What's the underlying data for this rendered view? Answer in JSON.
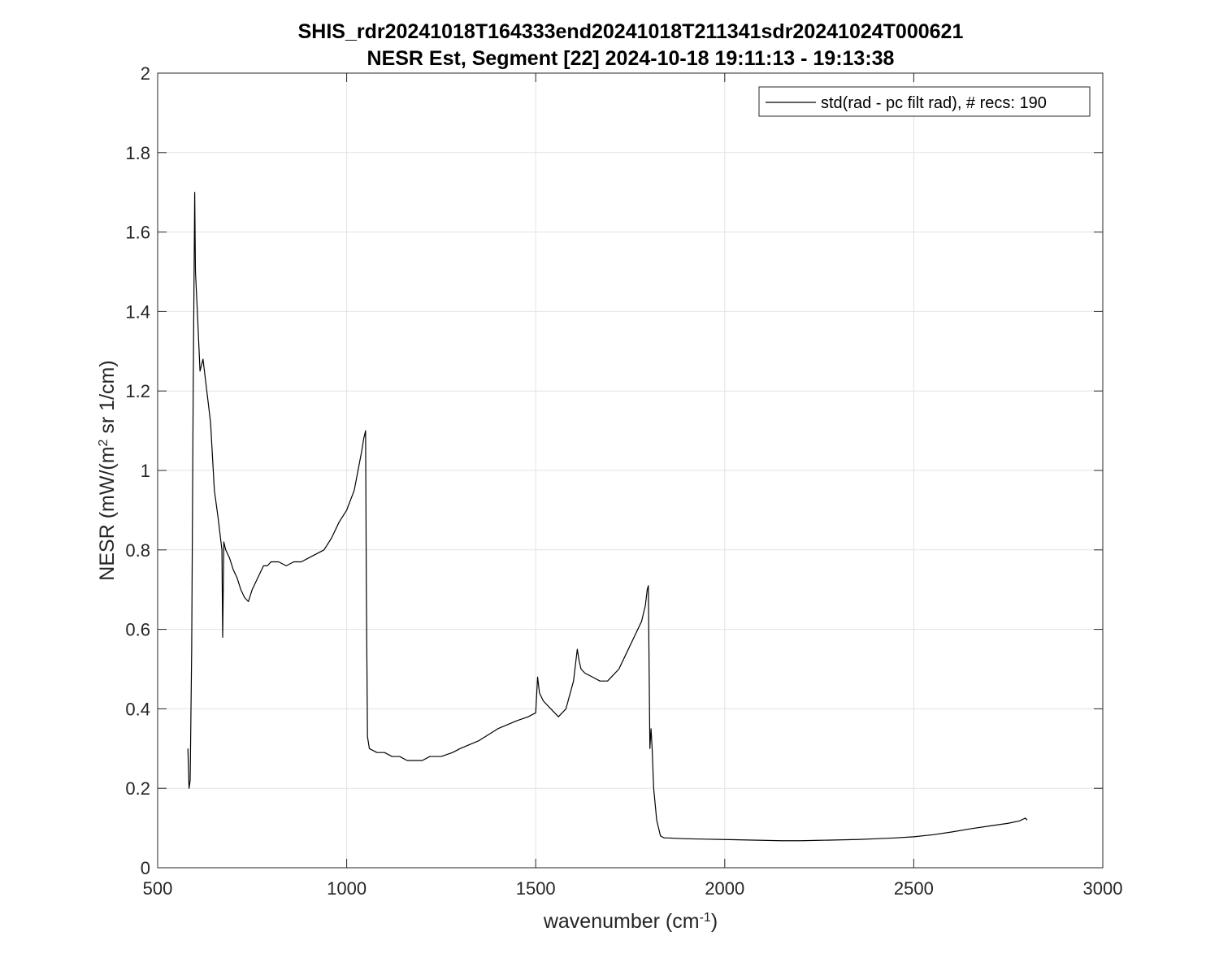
{
  "chart_data": {
    "type": "line",
    "title": [
      "SHIS_rdr20241018T164333end20241018T211341sdr20241024T000621",
      "NESR Est, Segment [22] 2024-10-18 19:11:13 - 19:13:38"
    ],
    "xlabel": {
      "text": "wavenumber (cm",
      "superscript": "-1",
      "suffix": ")"
    },
    "ylabel": {
      "text": "NESR (mW/(m",
      "superscript": "2",
      "suffix": " sr 1/cm)"
    },
    "xlim": [
      500,
      3000
    ],
    "ylim": [
      0,
      2
    ],
    "xticks": [
      500,
      1000,
      1500,
      2000,
      2500,
      3000
    ],
    "xtick_labels": [
      "500",
      "1000",
      "1500",
      "2000",
      "2500",
      "3000"
    ],
    "yticks": [
      0,
      0.2,
      0.4,
      0.6,
      0.8,
      1,
      1.2,
      1.4,
      1.6,
      1.8,
      2
    ],
    "ytick_labels": [
      "0",
      "0.2",
      "0.4",
      "0.6",
      "0.8",
      "1",
      "1.2",
      "1.4",
      "1.6",
      "1.8",
      "2"
    ],
    "grid": true,
    "legend_position": "top-right",
    "series": [
      {
        "name": "std(rad - pc filt rad), # recs:  190",
        "color": "#000000",
        "x": [
          580,
          583,
          586,
          590,
          594,
          598,
          600,
          605,
          612,
          620,
          630,
          640,
          650,
          660,
          670,
          672,
          675,
          680,
          690,
          700,
          710,
          720,
          730,
          740,
          750,
          760,
          770,
          780,
          790,
          800,
          820,
          840,
          860,
          880,
          900,
          920,
          940,
          960,
          980,
          1000,
          1020,
          1030,
          1040,
          1045,
          1050,
          1052,
          1055,
          1060,
          1080,
          1100,
          1120,
          1140,
          1160,
          1180,
          1200,
          1220,
          1250,
          1280,
          1300,
          1350,
          1400,
          1450,
          1480,
          1500,
          1505,
          1510,
          1520,
          1540,
          1560,
          1580,
          1600,
          1610,
          1615,
          1620,
          1630,
          1650,
          1670,
          1690,
          1700,
          1720,
          1740,
          1760,
          1780,
          1790,
          1795,
          1798,
          1800,
          1802,
          1805,
          1808,
          1812,
          1820,
          1830,
          1840,
          1850,
          1870,
          1900,
          1950,
          2000,
          2050,
          2100,
          2150,
          2200,
          2250,
          2300,
          2350,
          2400,
          2450,
          2500,
          2550,
          2600,
          2650,
          2700,
          2750,
          2780,
          2795,
          2800
        ],
        "y": [
          0.3,
          0.2,
          0.22,
          0.55,
          1.2,
          1.7,
          1.5,
          1.4,
          1.25,
          1.28,
          1.2,
          1.12,
          0.95,
          0.88,
          0.8,
          0.58,
          0.82,
          0.8,
          0.78,
          0.75,
          0.73,
          0.7,
          0.68,
          0.67,
          0.7,
          0.72,
          0.74,
          0.76,
          0.76,
          0.77,
          0.77,
          0.76,
          0.77,
          0.77,
          0.78,
          0.79,
          0.8,
          0.83,
          0.87,
          0.9,
          0.95,
          1.0,
          1.05,
          1.08,
          1.1,
          0.7,
          0.33,
          0.3,
          0.29,
          0.29,
          0.28,
          0.28,
          0.27,
          0.27,
          0.27,
          0.28,
          0.28,
          0.29,
          0.3,
          0.32,
          0.35,
          0.37,
          0.38,
          0.39,
          0.48,
          0.44,
          0.42,
          0.4,
          0.38,
          0.4,
          0.47,
          0.55,
          0.52,
          0.5,
          0.49,
          0.48,
          0.47,
          0.47,
          0.48,
          0.5,
          0.54,
          0.58,
          0.62,
          0.66,
          0.7,
          0.71,
          0.5,
          0.3,
          0.35,
          0.3,
          0.2,
          0.12,
          0.08,
          0.075,
          0.075,
          0.074,
          0.073,
          0.072,
          0.071,
          0.07,
          0.069,
          0.068,
          0.068,
          0.069,
          0.07,
          0.071,
          0.073,
          0.075,
          0.078,
          0.083,
          0.09,
          0.098,
          0.105,
          0.112,
          0.118,
          0.125,
          0.12
        ]
      }
    ]
  }
}
